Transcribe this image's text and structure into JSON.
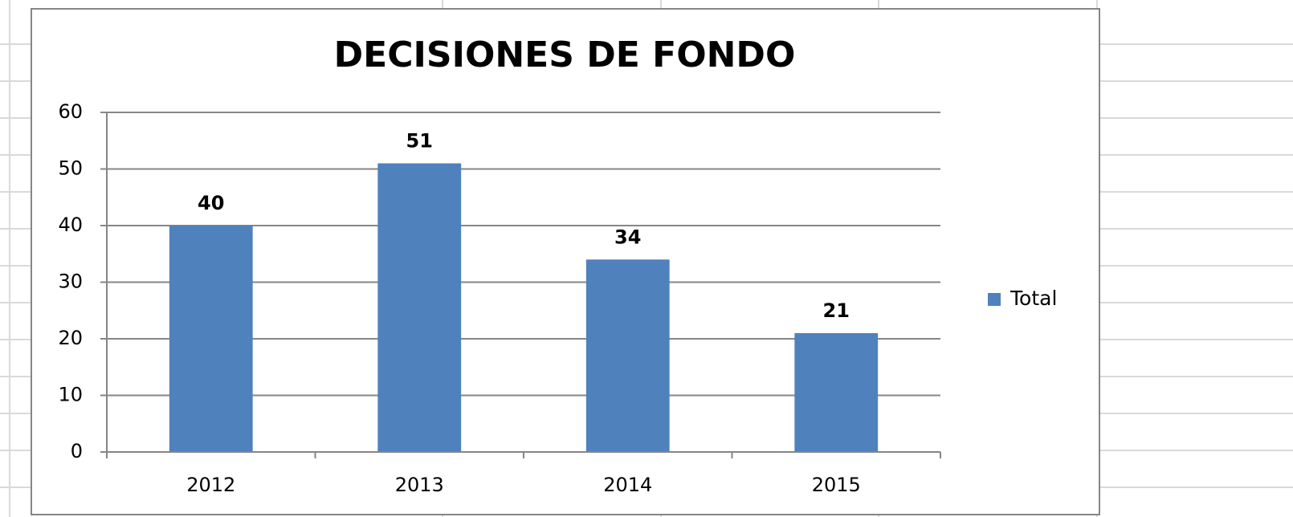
{
  "chart_data": {
    "type": "bar",
    "title": "DECISIONES DE FONDO",
    "categories": [
      "2012",
      "2013",
      "2014",
      "2015"
    ],
    "series": [
      {
        "name": "Total",
        "color": "#4f81bd",
        "values": [
          40,
          51,
          34,
          21
        ]
      }
    ],
    "ylim": [
      0,
      60
    ],
    "yticks": [
      0,
      10,
      20,
      30,
      40,
      50,
      60
    ],
    "grid": true,
    "legend": "right"
  }
}
